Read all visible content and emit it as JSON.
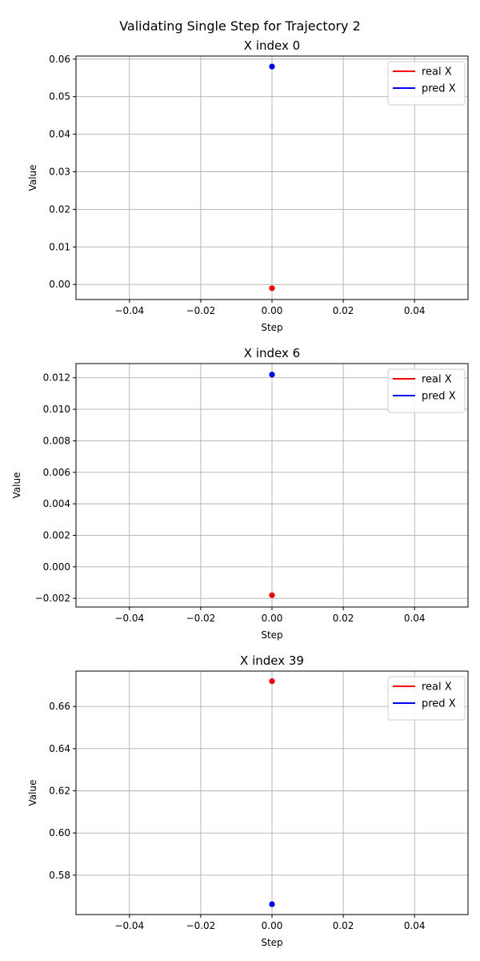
{
  "suptitle": "Validating Single Step for Trajectory 2",
  "colors": {
    "real": "#ff0000",
    "pred": "#0000ff",
    "grid": "#b0b0b0"
  },
  "chart_data": [
    {
      "type": "scatter",
      "title": "X index 0",
      "xlabel": "Step",
      "ylabel": "Value",
      "xlim": [
        -0.055,
        0.055
      ],
      "ylim": [
        -0.004,
        0.0608
      ],
      "xticks": [
        -0.04,
        -0.02,
        0.0,
        0.02,
        0.04
      ],
      "xtick_labels": [
        "−0.04",
        "−0.02",
        "0.00",
        "0.02",
        "0.04"
      ],
      "yticks": [
        0.0,
        0.01,
        0.02,
        0.03,
        0.04,
        0.05,
        0.06
      ],
      "ytick_labels": [
        "0.00",
        "0.01",
        "0.02",
        "0.03",
        "0.04",
        "0.05",
        "0.06"
      ],
      "grid": true,
      "legend_position": "top-right",
      "series": [
        {
          "name": "real X",
          "color": "#ff0000",
          "x": [
            0.0
          ],
          "y": [
            -0.001
          ]
        },
        {
          "name": "pred X",
          "color": "#0000ff",
          "x": [
            0.0
          ],
          "y": [
            0.058
          ]
        }
      ]
    },
    {
      "type": "scatter",
      "title": "X index 6",
      "xlabel": "Step",
      "ylabel": "Value",
      "xlim": [
        -0.055,
        0.055
      ],
      "ylim": [
        -0.00255,
        0.0129
      ],
      "xticks": [
        -0.04,
        -0.02,
        0.0,
        0.02,
        0.04
      ],
      "xtick_labels": [
        "−0.04",
        "−0.02",
        "0.00",
        "0.02",
        "0.04"
      ],
      "yticks": [
        -0.002,
        0.0,
        0.002,
        0.004,
        0.006,
        0.008,
        0.01,
        0.012
      ],
      "ytick_labels": [
        "−0.002",
        "0.000",
        "0.002",
        "0.004",
        "0.006",
        "0.008",
        "0.010",
        "0.012"
      ],
      "grid": true,
      "legend_position": "top-right",
      "series": [
        {
          "name": "real X",
          "color": "#ff0000",
          "x": [
            0.0
          ],
          "y": [
            -0.0018
          ]
        },
        {
          "name": "pred X",
          "color": "#0000ff",
          "x": [
            0.0
          ],
          "y": [
            0.0122
          ]
        }
      ]
    },
    {
      "type": "scatter",
      "title": "X index 39",
      "xlabel": "Step",
      "ylabel": "Value",
      "xlim": [
        -0.055,
        0.055
      ],
      "ylim": [
        0.5613,
        0.6768
      ],
      "xticks": [
        -0.04,
        -0.02,
        0.0,
        0.02,
        0.04
      ],
      "xtick_labels": [
        "−0.04",
        "−0.02",
        "0.00",
        "0.02",
        "0.04"
      ],
      "yticks": [
        0.58,
        0.6,
        0.62,
        0.64,
        0.66
      ],
      "ytick_labels": [
        "0.58",
        "0.60",
        "0.62",
        "0.64",
        "0.66"
      ],
      "grid": true,
      "legend_position": "top-right",
      "series": [
        {
          "name": "real X",
          "color": "#ff0000",
          "x": [
            0.0
          ],
          "y": [
            0.672
          ]
        },
        {
          "name": "pred X",
          "color": "#0000ff",
          "x": [
            0.0
          ],
          "y": [
            0.5662
          ]
        }
      ]
    }
  ]
}
